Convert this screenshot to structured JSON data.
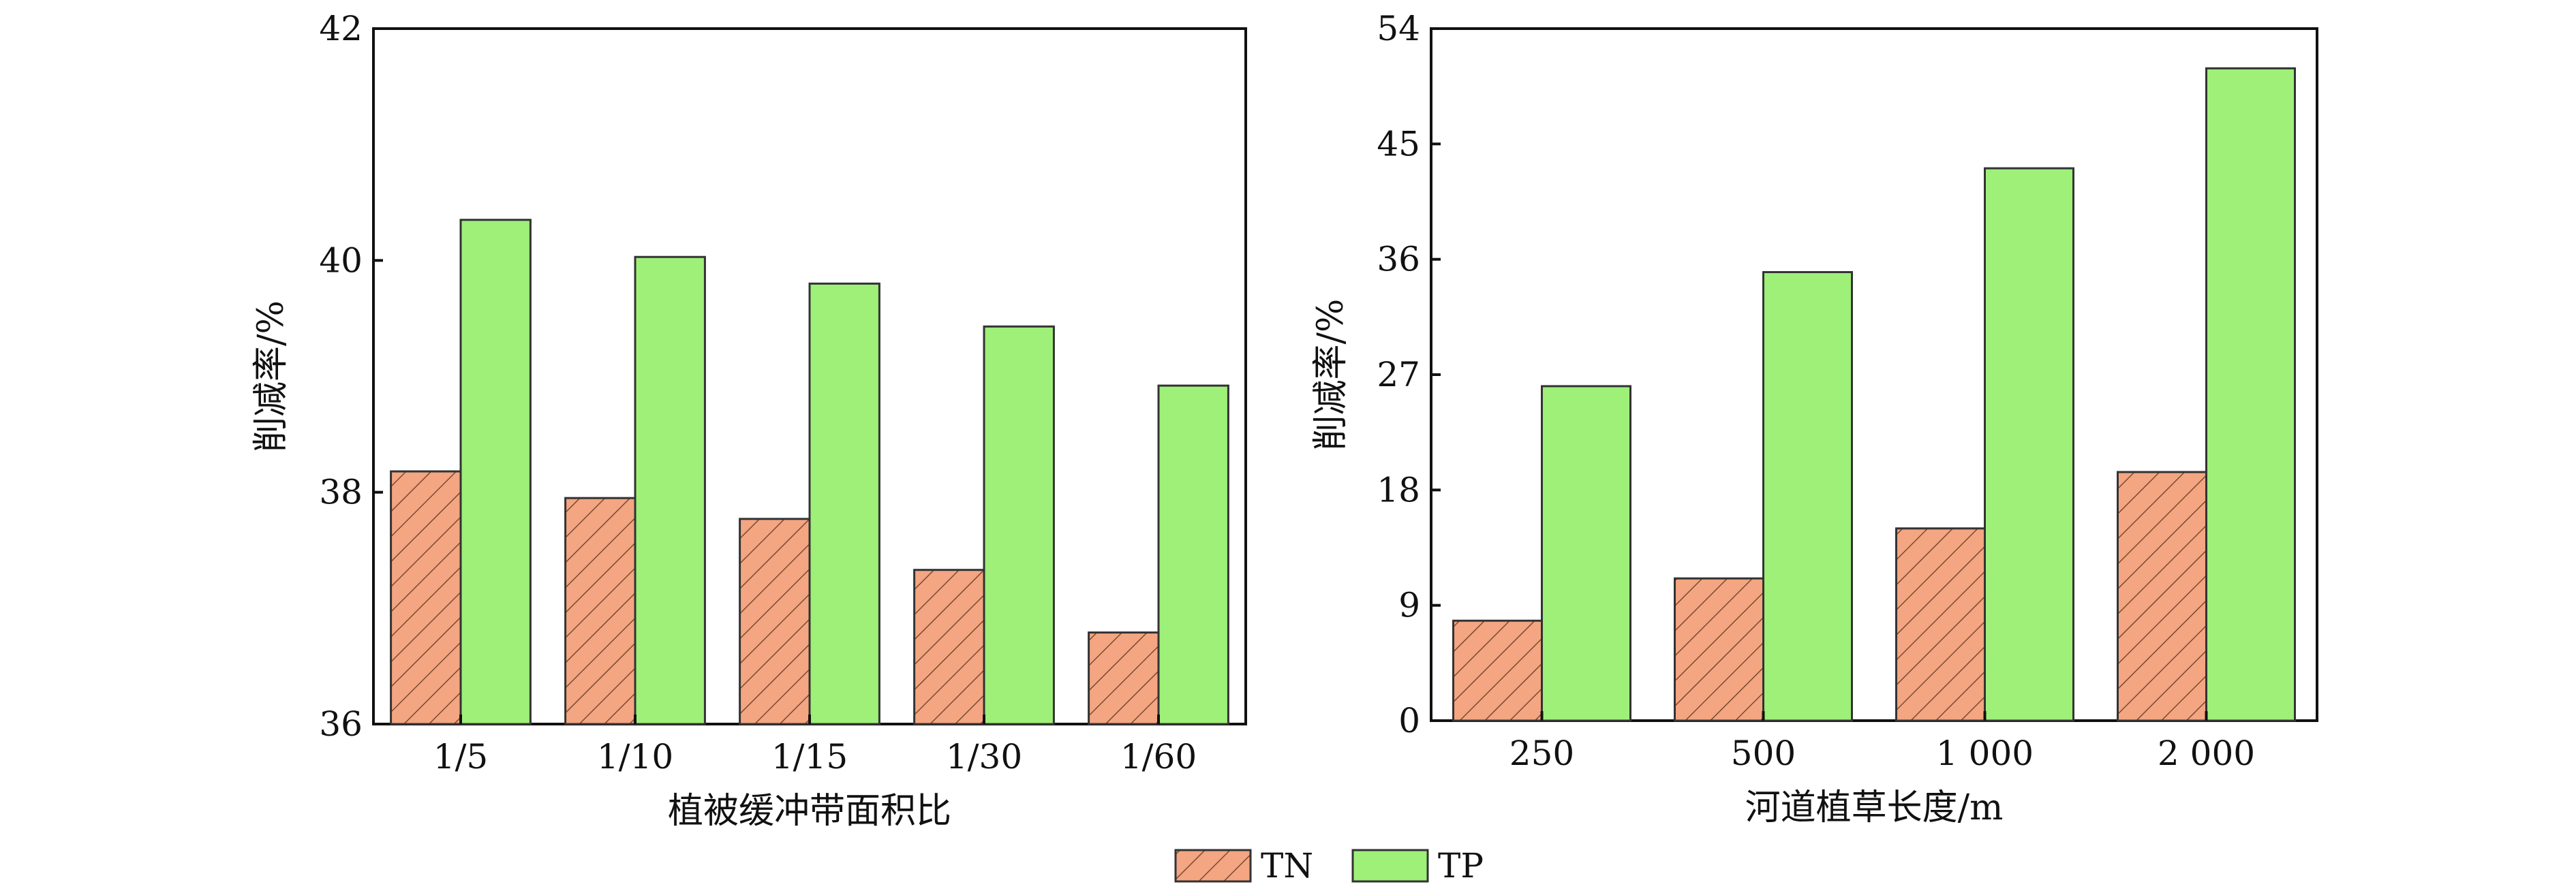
{
  "legend": {
    "items": [
      {
        "label": "TN",
        "color": "#f4a582",
        "pattern": "hatch"
      },
      {
        "label": "TP",
        "color": "#9ef078",
        "pattern": "solid"
      }
    ]
  },
  "chart_data": [
    {
      "type": "bar",
      "xlabel": "植被缓冲带面积比",
      "ylabel": "削减率/%",
      "ylim": [
        36,
        42
      ],
      "yticks": [
        "36",
        "38",
        "40",
        "42"
      ],
      "categories": [
        "1/5",
        "1/10",
        "1/15",
        "1/30",
        "1/60"
      ],
      "series": [
        {
          "name": "TN",
          "values": [
            38.18,
            37.95,
            37.77,
            37.33,
            36.79
          ]
        },
        {
          "name": "TP",
          "values": [
            40.35,
            40.03,
            39.8,
            39.43,
            38.92
          ]
        }
      ]
    },
    {
      "type": "bar",
      "xlabel": "河道植草长度/m",
      "ylabel": "削减率/%",
      "ylim": [
        0,
        54
      ],
      "yticks": [
        "0",
        "9",
        "18",
        "27",
        "36",
        "45",
        "54"
      ],
      "categories": [
        "250",
        "500",
        "1 000",
        "2 000"
      ],
      "series": [
        {
          "name": "TN",
          "values": [
            7.8,
            11.1,
            15.0,
            19.4
          ]
        },
        {
          "name": "TP",
          "values": [
            26.1,
            35.0,
            43.1,
            50.9
          ]
        }
      ]
    }
  ]
}
